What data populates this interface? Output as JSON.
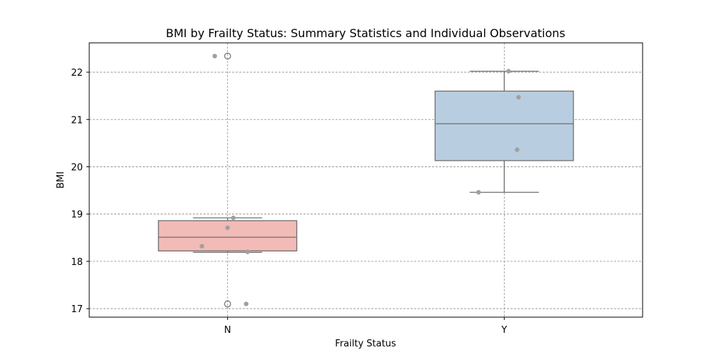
{
  "chart_data": {
    "type": "box",
    "title": "BMI by Frailty Status: Summary Statistics and Individual Observations",
    "xlabel": "Frailty Status",
    "ylabel": "BMI",
    "categories": [
      "N",
      "Y"
    ],
    "ylim": [
      16.82,
      22.62
    ],
    "yticks": [
      17,
      18,
      19,
      20,
      21,
      22
    ],
    "grid": true,
    "boxes": [
      {
        "category": "N",
        "color": "#f2bbb8",
        "whisker_low": 18.19,
        "q1": 18.22,
        "median": 18.51,
        "q3": 18.86,
        "whisker_high": 18.92,
        "outliers": [
          22.34,
          17.1
        ],
        "points": [
          22.34,
          18.92,
          18.71,
          18.32,
          18.2,
          17.1
        ]
      },
      {
        "category": "Y",
        "color": "#b9cde0",
        "whisker_low": 19.46,
        "q1": 20.13,
        "median": 20.91,
        "q3": 21.6,
        "whisker_high": 22.02,
        "outliers": [],
        "points": [
          22.02,
          21.47,
          20.36,
          19.46
        ]
      }
    ]
  }
}
